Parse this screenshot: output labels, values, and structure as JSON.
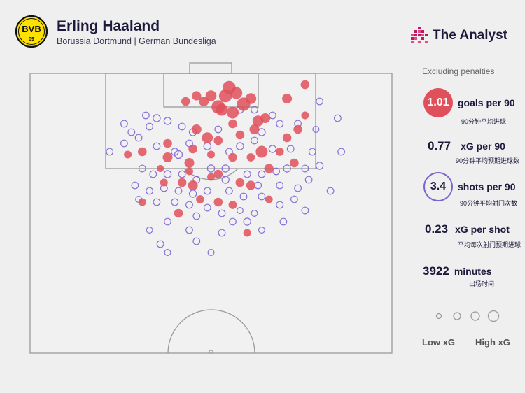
{
  "header": {
    "crest_text": "BVB",
    "crest_year": "09",
    "title": "Erling Haaland",
    "subtitle": "Borussia Dortmund | German Bundesliga",
    "brand": "The Analyst"
  },
  "stats": {
    "note": "Excluding penalties",
    "goals": {
      "value": "1.01",
      "label": "goals per 90",
      "cn": "90分钟平均进球"
    },
    "xg": {
      "value": "0.77",
      "label": "xG per 90",
      "cn": "90分钟平均预期进球数"
    },
    "shots": {
      "value": "3.4",
      "label": "shots per 90",
      "cn": "90分钟平均射门次数"
    },
    "xgshot": {
      "value": "0.23",
      "label": "xG per shot",
      "cn": "平均每次射门预期进球"
    },
    "minutes": {
      "value": "3922",
      "label": "minutes",
      "cn": "出场时间"
    }
  },
  "legend": {
    "low": "Low xG",
    "high": "High xG"
  },
  "colors": {
    "goal": "#e0505a",
    "miss": "#7d62d4",
    "navy": "#1c1a3b",
    "crest_yellow": "#fde100"
  },
  "chart_data": {
    "type": "scatter",
    "series": [
      {
        "name": "goal",
        "points": [
          [
            0.55,
            0.95,
            0.9
          ],
          [
            0.57,
            0.93,
            0.8
          ],
          [
            0.54,
            0.92,
            0.9
          ],
          [
            0.59,
            0.89,
            0.95
          ],
          [
            0.52,
            0.88,
            0.95
          ],
          [
            0.5,
            0.92,
            0.7
          ],
          [
            0.48,
            0.9,
            0.6
          ],
          [
            0.46,
            0.92,
            0.55
          ],
          [
            0.53,
            0.87,
            0.8
          ],
          [
            0.56,
            0.86,
            0.8
          ],
          [
            0.61,
            0.91,
            0.7
          ],
          [
            0.71,
            0.91,
            0.6
          ],
          [
            0.76,
            0.96,
            0.5
          ],
          [
            0.63,
            0.83,
            0.7
          ],
          [
            0.43,
            0.9,
            0.5
          ],
          [
            0.46,
            0.8,
            0.6
          ],
          [
            0.49,
            0.77,
            0.7
          ],
          [
            0.52,
            0.76,
            0.5
          ],
          [
            0.58,
            0.78,
            0.5
          ],
          [
            0.62,
            0.8,
            0.6
          ],
          [
            0.65,
            0.84,
            0.6
          ],
          [
            0.64,
            0.72,
            0.8
          ],
          [
            0.71,
            0.77,
            0.5
          ],
          [
            0.56,
            0.7,
            0.5
          ],
          [
            0.5,
            0.71,
            0.4
          ],
          [
            0.38,
            0.7,
            0.6
          ],
          [
            0.31,
            0.72,
            0.5
          ],
          [
            0.38,
            0.75,
            0.5
          ],
          [
            0.44,
            0.68,
            0.6
          ],
          [
            0.52,
            0.64,
            0.5
          ],
          [
            0.58,
            0.61,
            0.5
          ],
          [
            0.61,
            0.7,
            0.45
          ],
          [
            0.66,
            0.66,
            0.55
          ],
          [
            0.69,
            0.72,
            0.45
          ],
          [
            0.74,
            0.8,
            0.5
          ],
          [
            0.76,
            0.85,
            0.4
          ],
          [
            0.73,
            0.68,
            0.5
          ],
          [
            0.66,
            0.55,
            0.4
          ],
          [
            0.6,
            0.43,
            0.4
          ],
          [
            0.56,
            0.53,
            0.45
          ],
          [
            0.5,
            0.63,
            0.4
          ],
          [
            0.45,
            0.6,
            0.6
          ],
          [
            0.36,
            0.66,
            0.35
          ],
          [
            0.41,
            0.5,
            0.5
          ],
          [
            0.45,
            0.73,
            0.5
          ],
          [
            0.42,
            0.61,
            0.5
          ],
          [
            0.56,
            0.82,
            0.5
          ],
          [
            0.52,
            0.54,
            0.5
          ],
          [
            0.61,
            0.6,
            0.55
          ],
          [
            0.31,
            0.54,
            0.4
          ],
          [
            0.27,
            0.71,
            0.4
          ],
          [
            0.37,
            0.61,
            0.4
          ],
          [
            0.44,
            0.65,
            0.4
          ],
          [
            0.47,
            0.55,
            0.45
          ]
        ]
      },
      {
        "name": "miss",
        "points": [
          [
            0.32,
            0.85,
            0.3
          ],
          [
            0.35,
            0.84,
            0.35
          ],
          [
            0.28,
            0.79,
            0.3
          ],
          [
            0.26,
            0.82,
            0.3
          ],
          [
            0.33,
            0.81,
            0.3
          ],
          [
            0.38,
            0.83,
            0.35
          ],
          [
            0.42,
            0.81,
            0.3
          ],
          [
            0.45,
            0.79,
            0.35
          ],
          [
            0.52,
            0.8,
            0.3
          ],
          [
            0.64,
            0.79,
            0.35
          ],
          [
            0.69,
            0.82,
            0.3
          ],
          [
            0.74,
            0.82,
            0.3
          ],
          [
            0.79,
            0.8,
            0.25
          ],
          [
            0.35,
            0.74,
            0.3
          ],
          [
            0.4,
            0.72,
            0.35
          ],
          [
            0.44,
            0.75,
            0.3
          ],
          [
            0.49,
            0.74,
            0.35
          ],
          [
            0.55,
            0.72,
            0.3
          ],
          [
            0.58,
            0.74,
            0.35
          ],
          [
            0.62,
            0.76,
            0.3
          ],
          [
            0.67,
            0.73,
            0.35
          ],
          [
            0.72,
            0.73,
            0.3
          ],
          [
            0.78,
            0.72,
            0.3
          ],
          [
            0.31,
            0.66,
            0.3
          ],
          [
            0.34,
            0.64,
            0.3
          ],
          [
            0.38,
            0.64,
            0.35
          ],
          [
            0.42,
            0.64,
            0.3
          ],
          [
            0.46,
            0.62,
            0.3
          ],
          [
            0.5,
            0.66,
            0.35
          ],
          [
            0.54,
            0.66,
            0.35
          ],
          [
            0.6,
            0.64,
            0.3
          ],
          [
            0.64,
            0.64,
            0.3
          ],
          [
            0.68,
            0.65,
            0.3
          ],
          [
            0.71,
            0.66,
            0.35
          ],
          [
            0.76,
            0.66,
            0.3
          ],
          [
            0.8,
            0.67,
            0.35
          ],
          [
            0.29,
            0.6,
            0.3
          ],
          [
            0.33,
            0.58,
            0.3
          ],
          [
            0.37,
            0.59,
            0.3
          ],
          [
            0.41,
            0.58,
            0.3
          ],
          [
            0.45,
            0.57,
            0.35
          ],
          [
            0.49,
            0.58,
            0.3
          ],
          [
            0.55,
            0.58,
            0.3
          ],
          [
            0.59,
            0.56,
            0.3
          ],
          [
            0.64,
            0.56,
            0.3
          ],
          [
            0.69,
            0.6,
            0.3
          ],
          [
            0.74,
            0.59,
            0.3
          ],
          [
            0.77,
            0.62,
            0.3
          ],
          [
            0.3,
            0.55,
            0.25
          ],
          [
            0.35,
            0.54,
            0.3
          ],
          [
            0.4,
            0.54,
            0.3
          ],
          [
            0.44,
            0.53,
            0.3
          ],
          [
            0.49,
            0.52,
            0.3
          ],
          [
            0.53,
            0.5,
            0.3
          ],
          [
            0.58,
            0.51,
            0.25
          ],
          [
            0.62,
            0.5,
            0.25
          ],
          [
            0.69,
            0.53,
            0.3
          ],
          [
            0.73,
            0.55,
            0.3
          ],
          [
            0.76,
            0.51,
            0.3
          ],
          [
            0.83,
            0.58,
            0.3
          ],
          [
            0.86,
            0.72,
            0.3
          ],
          [
            0.8,
            0.9,
            0.3
          ],
          [
            0.85,
            0.84,
            0.3
          ],
          [
            0.22,
            0.72,
            0.3
          ],
          [
            0.26,
            0.75,
            0.3
          ],
          [
            0.3,
            0.77,
            0.3
          ],
          [
            0.58,
            0.87,
            0.3
          ],
          [
            0.62,
            0.87,
            0.3
          ],
          [
            0.67,
            0.85,
            0.3
          ],
          [
            0.6,
            0.47,
            0.35
          ],
          [
            0.56,
            0.47,
            0.3
          ],
          [
            0.46,
            0.49,
            0.3
          ],
          [
            0.38,
            0.47,
            0.3
          ],
          [
            0.33,
            0.44,
            0.25
          ],
          [
            0.44,
            0.44,
            0.3
          ],
          [
            0.53,
            0.43,
            0.3
          ],
          [
            0.64,
            0.44,
            0.25
          ],
          [
            0.7,
            0.47,
            0.3
          ],
          [
            0.36,
            0.39,
            0.3
          ],
          [
            0.46,
            0.4,
            0.3
          ],
          [
            0.38,
            0.36,
            0.25
          ],
          [
            0.5,
            0.36,
            0.25
          ],
          [
            0.54,
            0.62,
            0.35
          ],
          [
            0.41,
            0.71,
            0.4
          ],
          [
            0.63,
            0.6,
            0.3
          ]
        ]
      }
    ]
  }
}
